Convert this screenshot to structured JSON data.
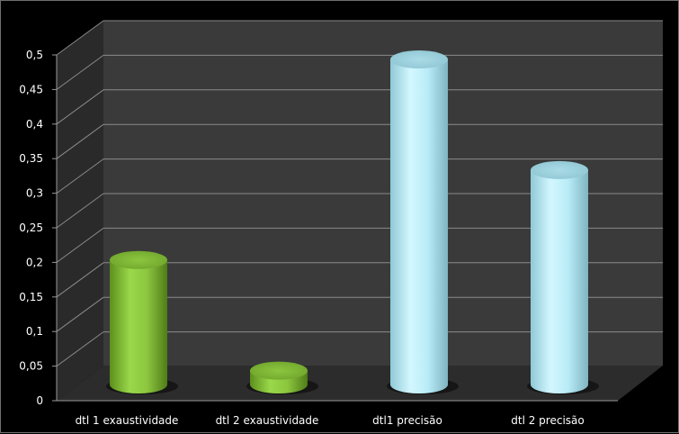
{
  "chart_data": {
    "type": "bar",
    "title": "",
    "xlabel": "",
    "ylabel": "",
    "categories": [
      "dtl 1 exaustividade",
      "dtl 2 exaustividade",
      "dtl1  precisão",
      "dtl 2 precisão"
    ],
    "values": [
      0.18,
      0.02,
      0.47,
      0.31
    ],
    "ylim": [
      0,
      0.5
    ],
    "yticks": [
      "0",
      "0,05",
      "0,1",
      "0,15",
      "0,2",
      "0,25",
      "0,3",
      "0,35",
      "0,4",
      "0,45",
      "0,5"
    ],
    "grid": true,
    "legend": "none",
    "bar_colors": [
      "#8cc63f",
      "#8cc63f",
      "#b9ecf7",
      "#b9ecf7"
    ],
    "background": "#000000",
    "wall_color": "#3a3a3a",
    "floor_color": "#2c2c2c"
  }
}
